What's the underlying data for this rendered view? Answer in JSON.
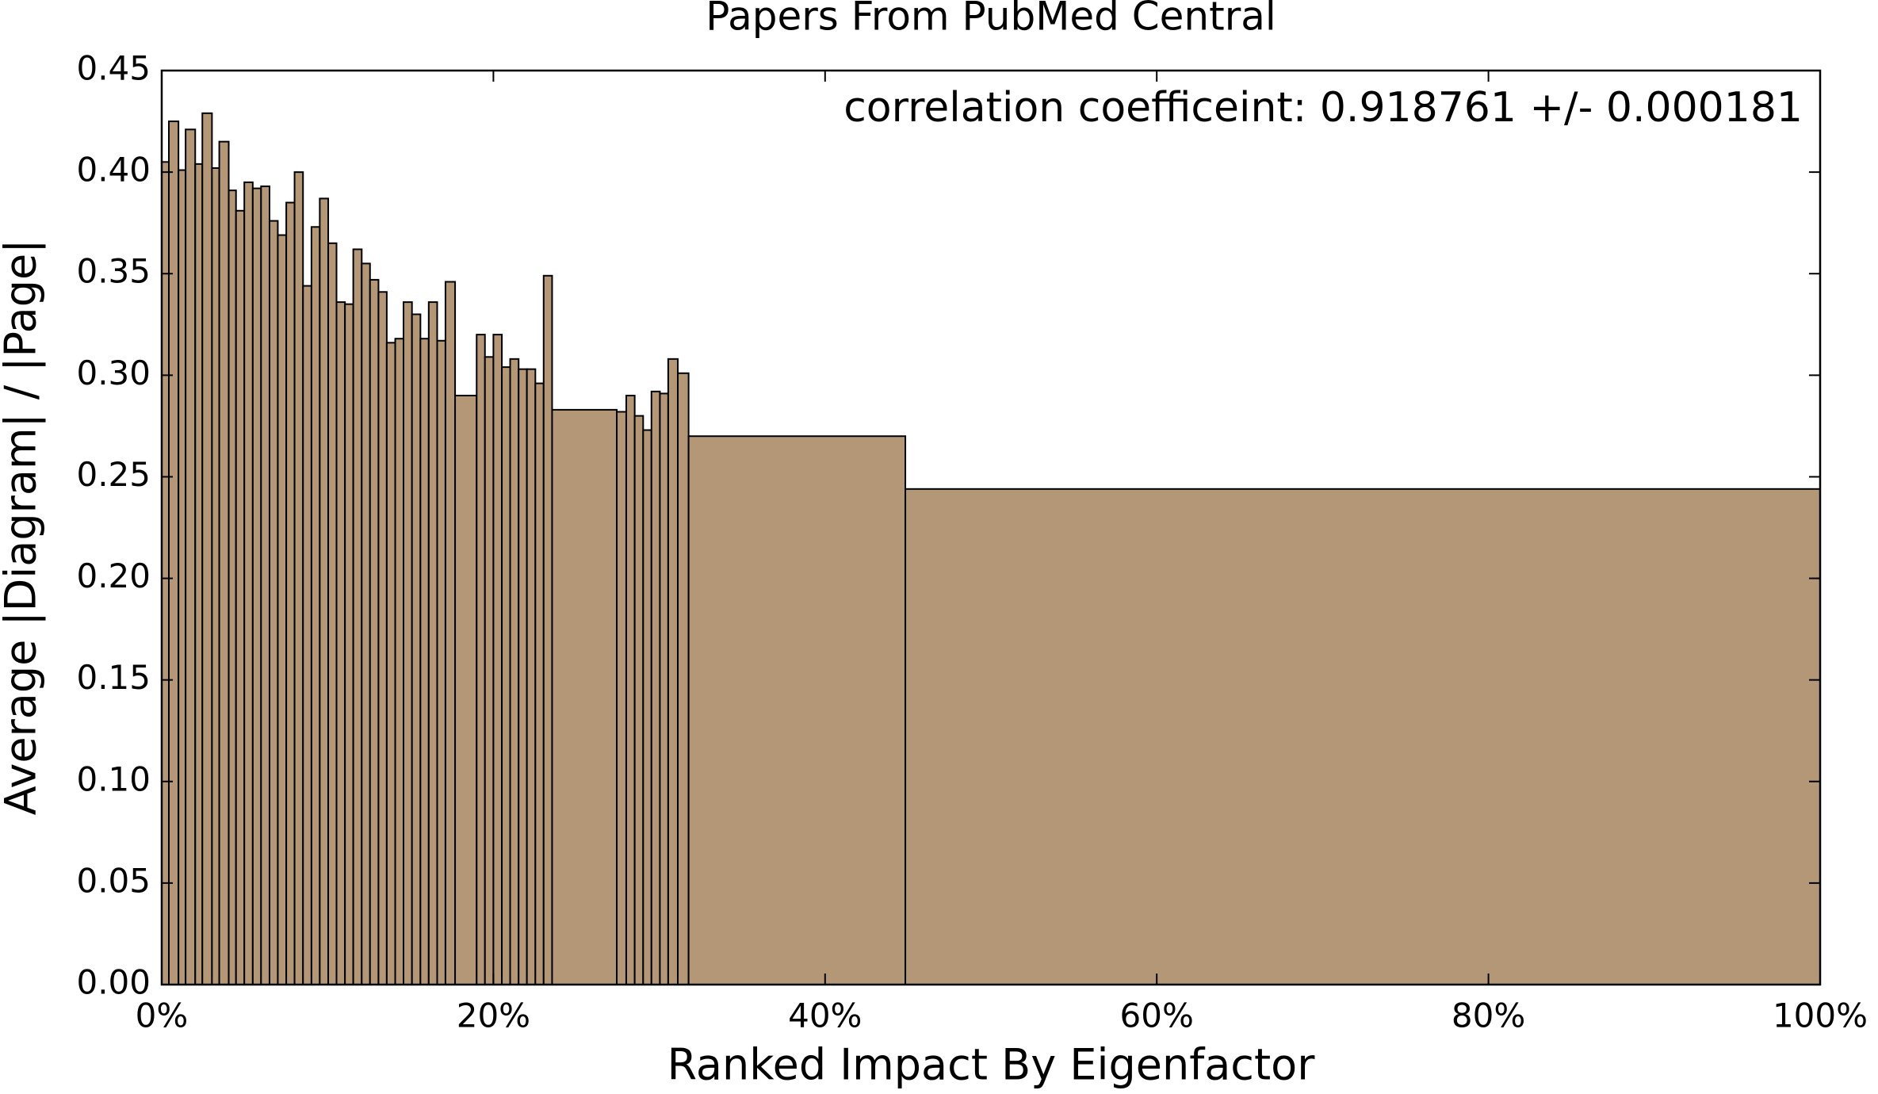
{
  "chart_data": {
    "type": "histogram",
    "title": "Papers From PubMed Central",
    "xlabel": "Ranked Impact By Eigenfactor",
    "ylabel": "Average |Diagram| / |Page|",
    "annotation": "correlation coefficeint: 0.918761 +/- 0.000181",
    "color": "#b39776",
    "bins": [
      0,
      0.43,
      1.01,
      1.44,
      2.02,
      2.45,
      3.03,
      3.47,
      4.04,
      4.48,
      4.98,
      5.49,
      5.99,
      6.5,
      7.0,
      7.51,
      8.01,
      8.52,
      9.03,
      9.53,
      10.04,
      10.54,
      11.05,
      11.55,
      12.06,
      12.56,
      13.07,
      13.57,
      14.08,
      14.58,
      15.09,
      15.6,
      16.1,
      16.61,
      17.11,
      17.69,
      18.99,
      19.49,
      20.0,
      20.51,
      21.01,
      21.52,
      22.02,
      22.53,
      23.03,
      23.54,
      27.44,
      28.01,
      28.52,
      29.03,
      29.53,
      30.04,
      30.54,
      31.12,
      31.77,
      44.84,
      100
    ],
    "values": [
      0.405,
      0.425,
      0.401,
      0.421,
      0.404,
      0.429,
      0.402,
      0.415,
      0.391,
      0.381,
      0.395,
      0.392,
      0.393,
      0.376,
      0.369,
      0.385,
      0.4,
      0.344,
      0.373,
      0.387,
      0.365,
      0.336,
      0.335,
      0.362,
      0.355,
      0.347,
      0.341,
      0.316,
      0.318,
      0.336,
      0.33,
      0.318,
      0.336,
      0.317,
      0.346,
      0.29,
      0.32,
      0.309,
      0.32,
      0.304,
      0.308,
      0.303,
      0.303,
      0.296,
      0.349,
      0.283,
      0.282,
      0.29,
      0.28,
      0.273,
      0.292,
      0.291,
      0.308,
      0.301,
      0.27,
      0.244
    ],
    "xlim": [
      0,
      100
    ],
    "xticks": [
      {
        "value": 0,
        "label": "0%"
      },
      {
        "value": 20,
        "label": "20%"
      },
      {
        "value": 40,
        "label": "40%"
      },
      {
        "value": 60,
        "label": "60%"
      },
      {
        "value": 80,
        "label": "80%"
      },
      {
        "value": 100,
        "label": "100%"
      }
    ],
    "ylim": [
      0,
      0.45
    ],
    "yticks": [
      {
        "value": 0,
        "label": "0.00"
      },
      0.05,
      {
        "value": 0.1,
        "label": "0.10"
      },
      0.15,
      {
        "value": 0.2,
        "label": "0.20"
      },
      0.25,
      {
        "value": 0.3,
        "label": "0.30"
      },
      0.35,
      {
        "value": 0.4,
        "label": "0.40"
      },
      0.45
    ],
    "grid": false
  }
}
